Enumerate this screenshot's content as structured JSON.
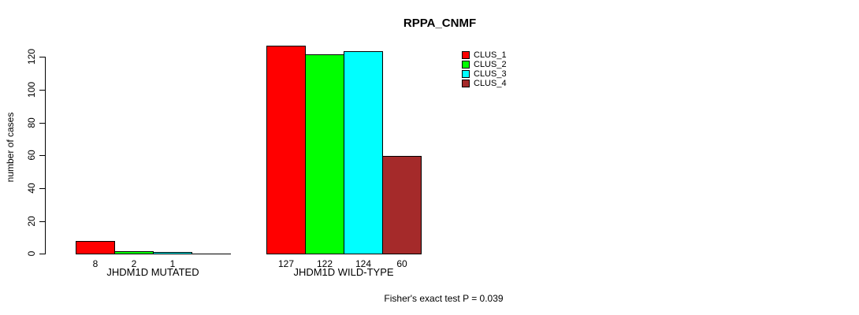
{
  "chart_data": {
    "type": "bar",
    "title": "RPPA_CNMF",
    "ylabel": "number of cases",
    "xlabel": "",
    "ylim": [
      0,
      120
    ],
    "yticks": [
      0,
      20,
      40,
      60,
      80,
      100,
      120
    ],
    "grid": false,
    "categories": [
      "JHDM1D MUTATED",
      "JHDM1D WILD-TYPE"
    ],
    "series": [
      {
        "name": "CLUS_1",
        "color": "#FF0000",
        "values": [
          8,
          127
        ]
      },
      {
        "name": "CLUS_2",
        "color": "#00FF00",
        "values": [
          2,
          122
        ]
      },
      {
        "name": "CLUS_3",
        "color": "#00FFFF",
        "values": [
          1,
          124
        ]
      },
      {
        "name": "CLUS_4",
        "color": "#A52A2A",
        "values": [
          0,
          60
        ]
      }
    ],
    "bar_value_labels": [
      [
        "8",
        "2",
        "1",
        ""
      ],
      [
        "127",
        "122",
        "124",
        "60"
      ]
    ],
    "legend": {
      "position": "top-right",
      "entries": [
        {
          "label": "CLUS_1",
          "color": "#FF0000"
        },
        {
          "label": "CLUS_2",
          "color": "#00FF00"
        },
        {
          "label": "CLUS_3",
          "color": "#00FFFF"
        },
        {
          "label": "CLUS_4",
          "color": "#A52A2A"
        }
      ]
    },
    "annotation": "Fisher's exact test P = 0.039"
  },
  "colors": {
    "background": "#FFFFFF",
    "axis": "#000000",
    "text": "#000000"
  }
}
